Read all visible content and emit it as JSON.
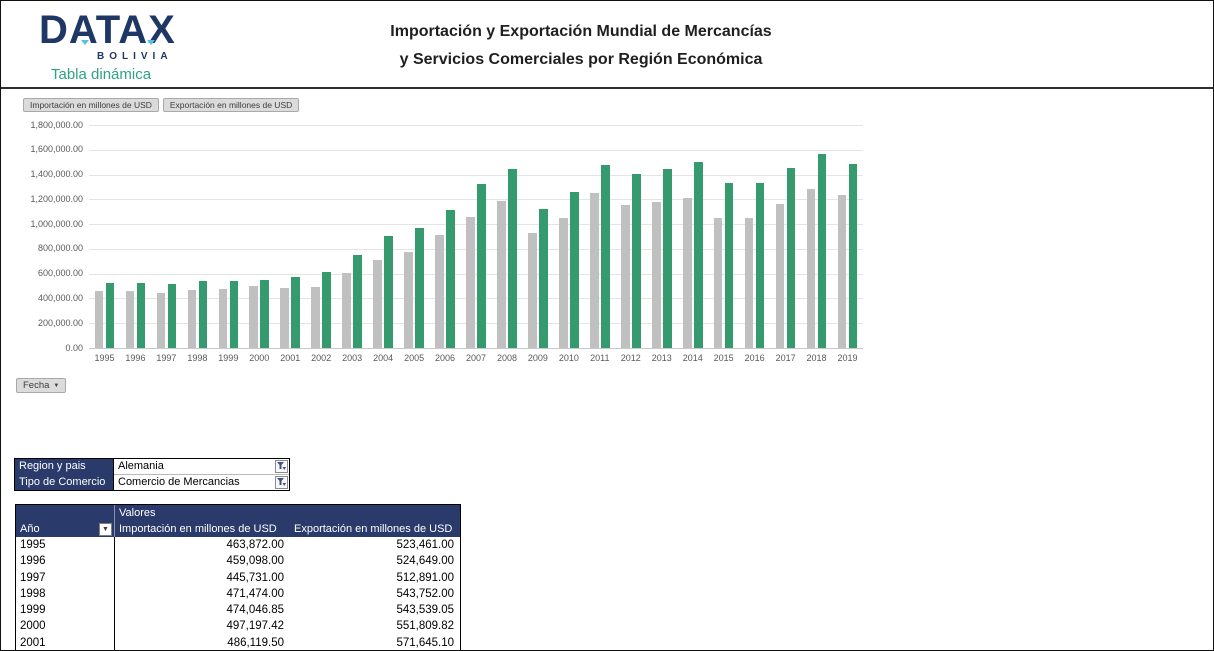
{
  "brand": {
    "name": "DATAX",
    "subname": "BOLIVIA",
    "tagline": "Tabla dinámica"
  },
  "header": {
    "title_line1": "Importación y Exportación Mundial de Mercancías",
    "title_line2": "y Servicios Comerciales por Región Económica"
  },
  "chart": {
    "legend_fields": [
      "Importación en millones de USD",
      "Exportación en millones de USD"
    ],
    "axis_field": "Fecha",
    "dropdown_glyph": "▼"
  },
  "chart_data": {
    "type": "bar",
    "title": "Importación y Exportación Mundial de Mercancías y Servicios Comerciales por Región Económica",
    "xlabel": "Fecha",
    "ylabel": "",
    "ylim": [
      0,
      1800000
    ],
    "ytick_step": 200000,
    "ytick_labels": [
      "0.00",
      "200,000.00",
      "400,000.00",
      "600,000.00",
      "800,000.00",
      "1,000,000.00",
      "1,200,000.00",
      "1,400,000.00",
      "1,600,000.00",
      "1,800,000.00"
    ],
    "grid": true,
    "legend_position": "top-left",
    "categories": [
      "1995",
      "1996",
      "1997",
      "1998",
      "1999",
      "2000",
      "2001",
      "2002",
      "2003",
      "2004",
      "2005",
      "2006",
      "2007",
      "2008",
      "2009",
      "2010",
      "2011",
      "2012",
      "2013",
      "2014",
      "2015",
      "2016",
      "2017",
      "2018",
      "2019"
    ],
    "series": [
      {
        "name": "Importación en millones de USD",
        "color": "#c0c0c0",
        "values": [
          463872,
          459098,
          445731,
          471474,
          474046.85,
          497197.42,
          486119.5,
          489000,
          605000,
          713000,
          778000,
          909000,
          1056000,
          1188000,
          925000,
          1053000,
          1255000,
          1153000,
          1182000,
          1209000,
          1051000,
          1053000,
          1166000,
          1284000,
          1236000
        ]
      },
      {
        "name": "Exportación en millones de USD",
        "color": "#359b6e",
        "values": [
          523461,
          524649,
          512891,
          543752,
          543539.05,
          551809.82,
          571645.1,
          617000,
          752000,
          908000,
          971000,
          1112000,
          1323000,
          1446000,
          1121000,
          1261000,
          1478000,
          1403000,
          1446000,
          1499000,
          1330000,
          1335000,
          1454000,
          1563000,
          1488000
        ]
      }
    ]
  },
  "filters": {
    "rows": [
      {
        "label": "Region y pais",
        "value": "Alemania"
      },
      {
        "label": "Tipo de Comercio",
        "value": "Comercio de Mercancias"
      }
    ]
  },
  "table": {
    "values_header": "Valores",
    "year_header": "Año",
    "columns": [
      "Importación en millones de USD",
      "Exportación en millones de USD"
    ],
    "rows": [
      {
        "year": "1995",
        "import": "463,872.00",
        "export": "523,461.00"
      },
      {
        "year": "1996",
        "import": "459,098.00",
        "export": "524,649.00"
      },
      {
        "year": "1997",
        "import": "445,731.00",
        "export": "512,891.00"
      },
      {
        "year": "1998",
        "import": "471,474.00",
        "export": "543,752.00"
      },
      {
        "year": "1999",
        "import": "474,046.85",
        "export": "543,539.05"
      },
      {
        "year": "2000",
        "import": "497,197.42",
        "export": "551,809.82"
      },
      {
        "year": "2001",
        "import": "486,119.50",
        "export": "571,645.10"
      }
    ]
  },
  "colors": {
    "accent_navy": "#293a6b",
    "brand_navy": "#1e3765",
    "brand_teal": "#2fa283",
    "brand_lightblue": "#56bee8",
    "bar_import": "#c0c0c0",
    "bar_export": "#359b6e"
  }
}
